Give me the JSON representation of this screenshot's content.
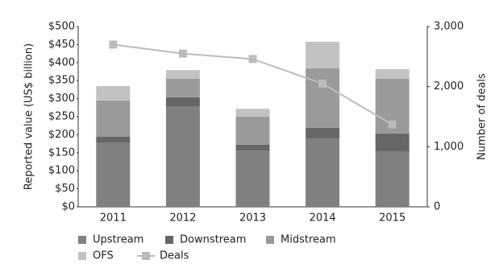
{
  "chart_data": {
    "type": "bar",
    "stacked": true,
    "categories": [
      "2011",
      "2012",
      "2013",
      "2014",
      "2015"
    ],
    "y_label": "Reported value (US$ billion)",
    "y2_label": "Number of deals",
    "ylim": [
      0,
      500
    ],
    "yticks": [
      {
        "value": 0,
        "label": "$0"
      },
      {
        "value": 50,
        "label": "$50"
      },
      {
        "value": 100,
        "label": "$100"
      },
      {
        "value": 150,
        "label": "$150"
      },
      {
        "value": 200,
        "label": "$200"
      },
      {
        "value": 250,
        "label": "$250"
      },
      {
        "value": 300,
        "label": "$300"
      },
      {
        "value": 350,
        "label": "$350"
      },
      {
        "value": 400,
        "label": "$400"
      },
      {
        "value": 450,
        "label": "$450"
      },
      {
        "value": 500,
        "label": "$500"
      }
    ],
    "y2lim": [
      0,
      3000
    ],
    "y2ticks": [
      0,
      {
        "value": 1000,
        "label": "1,000"
      },
      {
        "value": 2000,
        "label": "2,000"
      },
      {
        "value": 3000,
        "label": "3,000"
      }
    ],
    "series": [
      {
        "name": "Upstream",
        "color": "#808080",
        "values": [
          177,
          279,
          156,
          190,
          154
        ]
      },
      {
        "name": "Downstream",
        "color": "#666666",
        "values": [
          18,
          25,
          16,
          29,
          49
        ]
      },
      {
        "name": "Midstream",
        "color": "#9a9a9a",
        "values": [
          100,
          51,
          78,
          165,
          152
        ]
      },
      {
        "name": "OFS",
        "color": "#c2c2c2",
        "values": [
          40,
          24,
          22,
          74,
          27
        ]
      },
      {
        "name": "Deals",
        "color": "#bbbbbb",
        "type": "line",
        "axis": "y2",
        "values": [
          2700,
          2550,
          2460,
          2050,
          1370
        ]
      }
    ]
  }
}
